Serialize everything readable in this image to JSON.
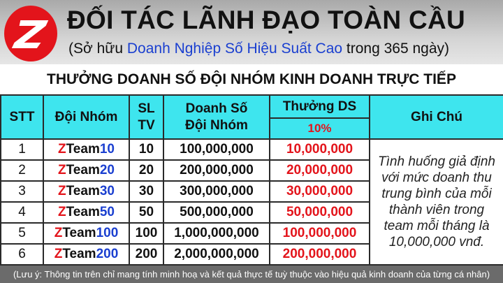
{
  "header": {
    "title": "ĐỐI TÁC LÃNH ĐẠO TOÀN CẦU",
    "subtitle_pre": "(Sở hữu ",
    "subtitle_highlight": "Doanh Nghiệp Số Hiệu Suất Cao",
    "subtitle_post": " trong 365 ngày)",
    "logo_letter": "Z"
  },
  "banner_title": "THƯỞNG DOANH SỐ ĐỘI NHÓM KINH DOANH TRỰC TIẾP",
  "table": {
    "headers": {
      "stt": "STT",
      "team": "Đội Nhóm",
      "sl": "SL",
      "tv": "TV",
      "revenue1": "Doanh Số",
      "revenue2": "Đội Nhóm",
      "bonus": "Thưởng DS",
      "bonus_pct": "10%",
      "note": "Ghi Chú"
    },
    "rows": [
      {
        "stt": "1",
        "team_prefix": "ZTeam",
        "team_num": "10",
        "sl": "10",
        "revenue": "100,000,000",
        "bonus": "10,000,000"
      },
      {
        "stt": "2",
        "team_prefix": "ZTeam",
        "team_num": "20",
        "sl": "20",
        "revenue": "200,000,000",
        "bonus": "20,000,000"
      },
      {
        "stt": "3",
        "team_prefix": "ZTeam",
        "team_num": "30",
        "sl": "30",
        "revenue": "300,000,000",
        "bonus": "30,000,000"
      },
      {
        "stt": "4",
        "team_prefix": "ZTeam",
        "team_num": "50",
        "sl": "50",
        "revenue": "500,000,000",
        "bonus": "50,000,000"
      },
      {
        "stt": "5",
        "team_prefix": "ZTeam",
        "team_num": "100",
        "sl": "100",
        "revenue": "1,000,000,000",
        "bonus": "100,000,000"
      },
      {
        "stt": "6",
        "team_prefix": "ZTeam",
        "team_num": "200",
        "sl": "200",
        "revenue": "2,000,000,000",
        "bonus": "200,000,000"
      }
    ],
    "note": "Tình huống giả định với mức doanh thu trung bình của mỗi thành viên trong team mỗi tháng là 10,000,000 vnđ."
  },
  "footnote": "(Lưu ý: Thông tin trên chỉ mang tính minh hoạ và kết quả thực tế tuỳ thuộc vào hiệu quả kinh doanh của từng cá nhân)",
  "colors": {
    "header_cell": "#3ee5ee",
    "accent_red": "#e3141b",
    "accent_blue": "#1a3fd0"
  }
}
